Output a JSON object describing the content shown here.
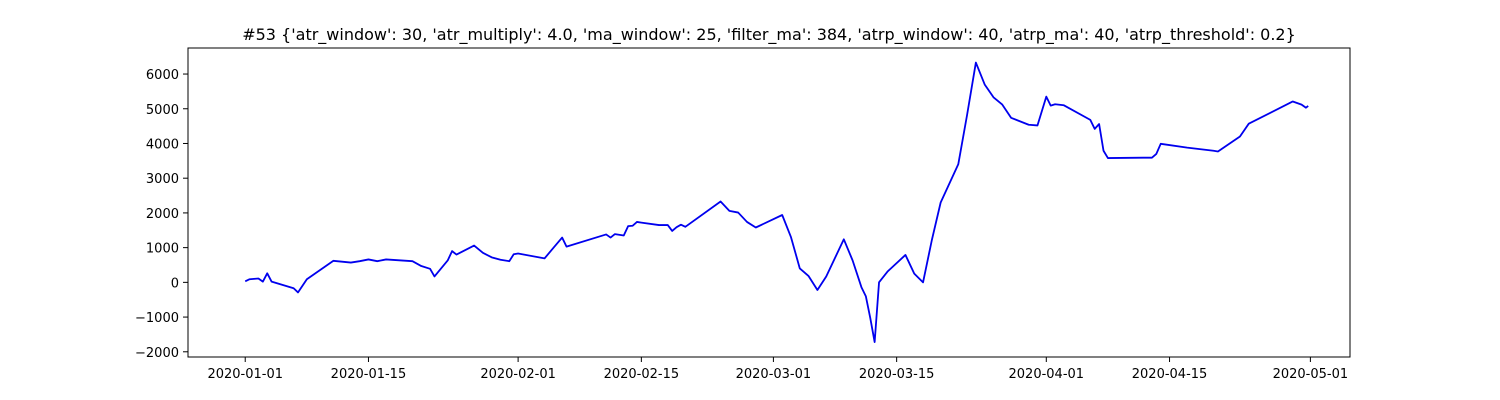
{
  "chart_data": {
    "type": "line",
    "title": "#53 {'atr_window': 30, 'atr_multiply': 4.0, 'ma_window': 25, 'filter_ma': 384, 'atrp_window': 40, 'atrp_ma': 40, 'atrp_threshold': 0.2}",
    "xlabel": "",
    "ylabel": "",
    "grid": false,
    "legend": "none",
    "line_color": "#0000ee",
    "xlim": [
      "2019-12-25T12:00",
      "2020-05-05T12:00"
    ],
    "ylim": [
      -2150,
      6750
    ],
    "x_ticks": [
      "2020-01-01",
      "2020-01-15",
      "2020-02-01",
      "2020-02-15",
      "2020-03-01",
      "2020-03-15",
      "2020-04-01",
      "2020-04-15",
      "2020-05-01"
    ],
    "y_ticks": [
      -2000,
      -1000,
      0,
      1000,
      2000,
      3000,
      4000,
      5000,
      6000
    ],
    "y_tick_labels": [
      "−2000",
      "−1000",
      "0",
      "1000",
      "2000",
      "3000",
      "4000",
      "5000",
      "6000"
    ],
    "series": [
      {
        "x": [
          "2020-01-01",
          "2020-01-01T12:00",
          "2020-01-02",
          "2020-01-02T12:00",
          "2020-01-03",
          "2020-01-03T12:00",
          "2020-01-04",
          "2020-01-06T12:00",
          "2020-01-07",
          "2020-01-08",
          "2020-01-11",
          "2020-01-13",
          "2020-01-14",
          "2020-01-15",
          "2020-01-16",
          "2020-01-17",
          "2020-01-20",
          "2020-01-21",
          "2020-01-22",
          "2020-01-22T12:00",
          "2020-01-24",
          "2020-01-24T12:00",
          "2020-01-25",
          "2020-01-27",
          "2020-01-28",
          "2020-01-29",
          "2020-01-30",
          "2020-01-31",
          "2020-01-31T12:00",
          "2020-02-01",
          "2020-02-04",
          "2020-02-05",
          "2020-02-06",
          "2020-02-06T12:00",
          "2020-02-11",
          "2020-02-11T12:00",
          "2020-02-12",
          "2020-02-13",
          "2020-02-13T12:00",
          "2020-02-14",
          "2020-02-14T12:00",
          "2020-02-15",
          "2020-02-17",
          "2020-02-18",
          "2020-02-18T12:00",
          "2020-02-19",
          "2020-02-19T12:00",
          "2020-02-20",
          "2020-02-24",
          "2020-02-25",
          "2020-02-26",
          "2020-02-27",
          "2020-02-28",
          "2020-03-02",
          "2020-03-03",
          "2020-03-04",
          "2020-03-05",
          "2020-03-06",
          "2020-03-07",
          "2020-03-09",
          "2020-03-10",
          "2020-03-11",
          "2020-03-11T12:00",
          "2020-03-12",
          "2020-03-12T12:00",
          "2020-03-13",
          "2020-03-14",
          "2020-03-16",
          "2020-03-17",
          "2020-03-18",
          "2020-03-19",
          "2020-03-20",
          "2020-03-22",
          "2020-03-23",
          "2020-03-24",
          "2020-03-25",
          "2020-03-26",
          "2020-03-27",
          "2020-03-28",
          "2020-03-30",
          "2020-03-31",
          "2020-04-01",
          "2020-04-01T12:00",
          "2020-04-02",
          "2020-04-03",
          "2020-04-06",
          "2020-04-06T12:00",
          "2020-04-07",
          "2020-04-07T12:00",
          "2020-04-08",
          "2020-04-12",
          "2020-04-13",
          "2020-04-13T12:00",
          "2020-04-14",
          "2020-04-17",
          "2020-04-20",
          "2020-04-20T12:00",
          "2020-04-23",
          "2020-04-24",
          "2020-04-29",
          "2020-04-30",
          "2020-04-30T12:00",
          "2020-04-30T18:00"
        ],
        "y": [
          30,
          90,
          100,
          110,
          20,
          260,
          20,
          -170,
          -290,
          90,
          620,
          570,
          610,
          660,
          610,
          660,
          610,
          470,
          390,
          170,
          630,
          900,
          800,
          1060,
          850,
          720,
          650,
          610,
          810,
          830,
          690,
          990,
          1290,
          1030,
          1380,
          1290,
          1390,
          1350,
          1620,
          1630,
          1740,
          1720,
          1650,
          1650,
          1480,
          1590,
          1660,
          1600,
          2330,
          2060,
          2010,
          1740,
          1580,
          1940,
          1300,
          400,
          180,
          -220,
          170,
          1240,
          630,
          -140,
          -400,
          -1020,
          -1720,
          0,
          320,
          790,
          250,
          0,
          1220,
          2300,
          3400,
          4820,
          6330,
          5700,
          5330,
          5120,
          4740,
          4540,
          4520,
          5350,
          5090,
          5130,
          5100,
          4680,
          4420,
          4560,
          3790,
          3580,
          3590,
          3590,
          3700,
          3990,
          3880,
          3790,
          3770,
          4200,
          4570,
          5210,
          5120,
          5030,
          5080
        ]
      }
    ]
  }
}
